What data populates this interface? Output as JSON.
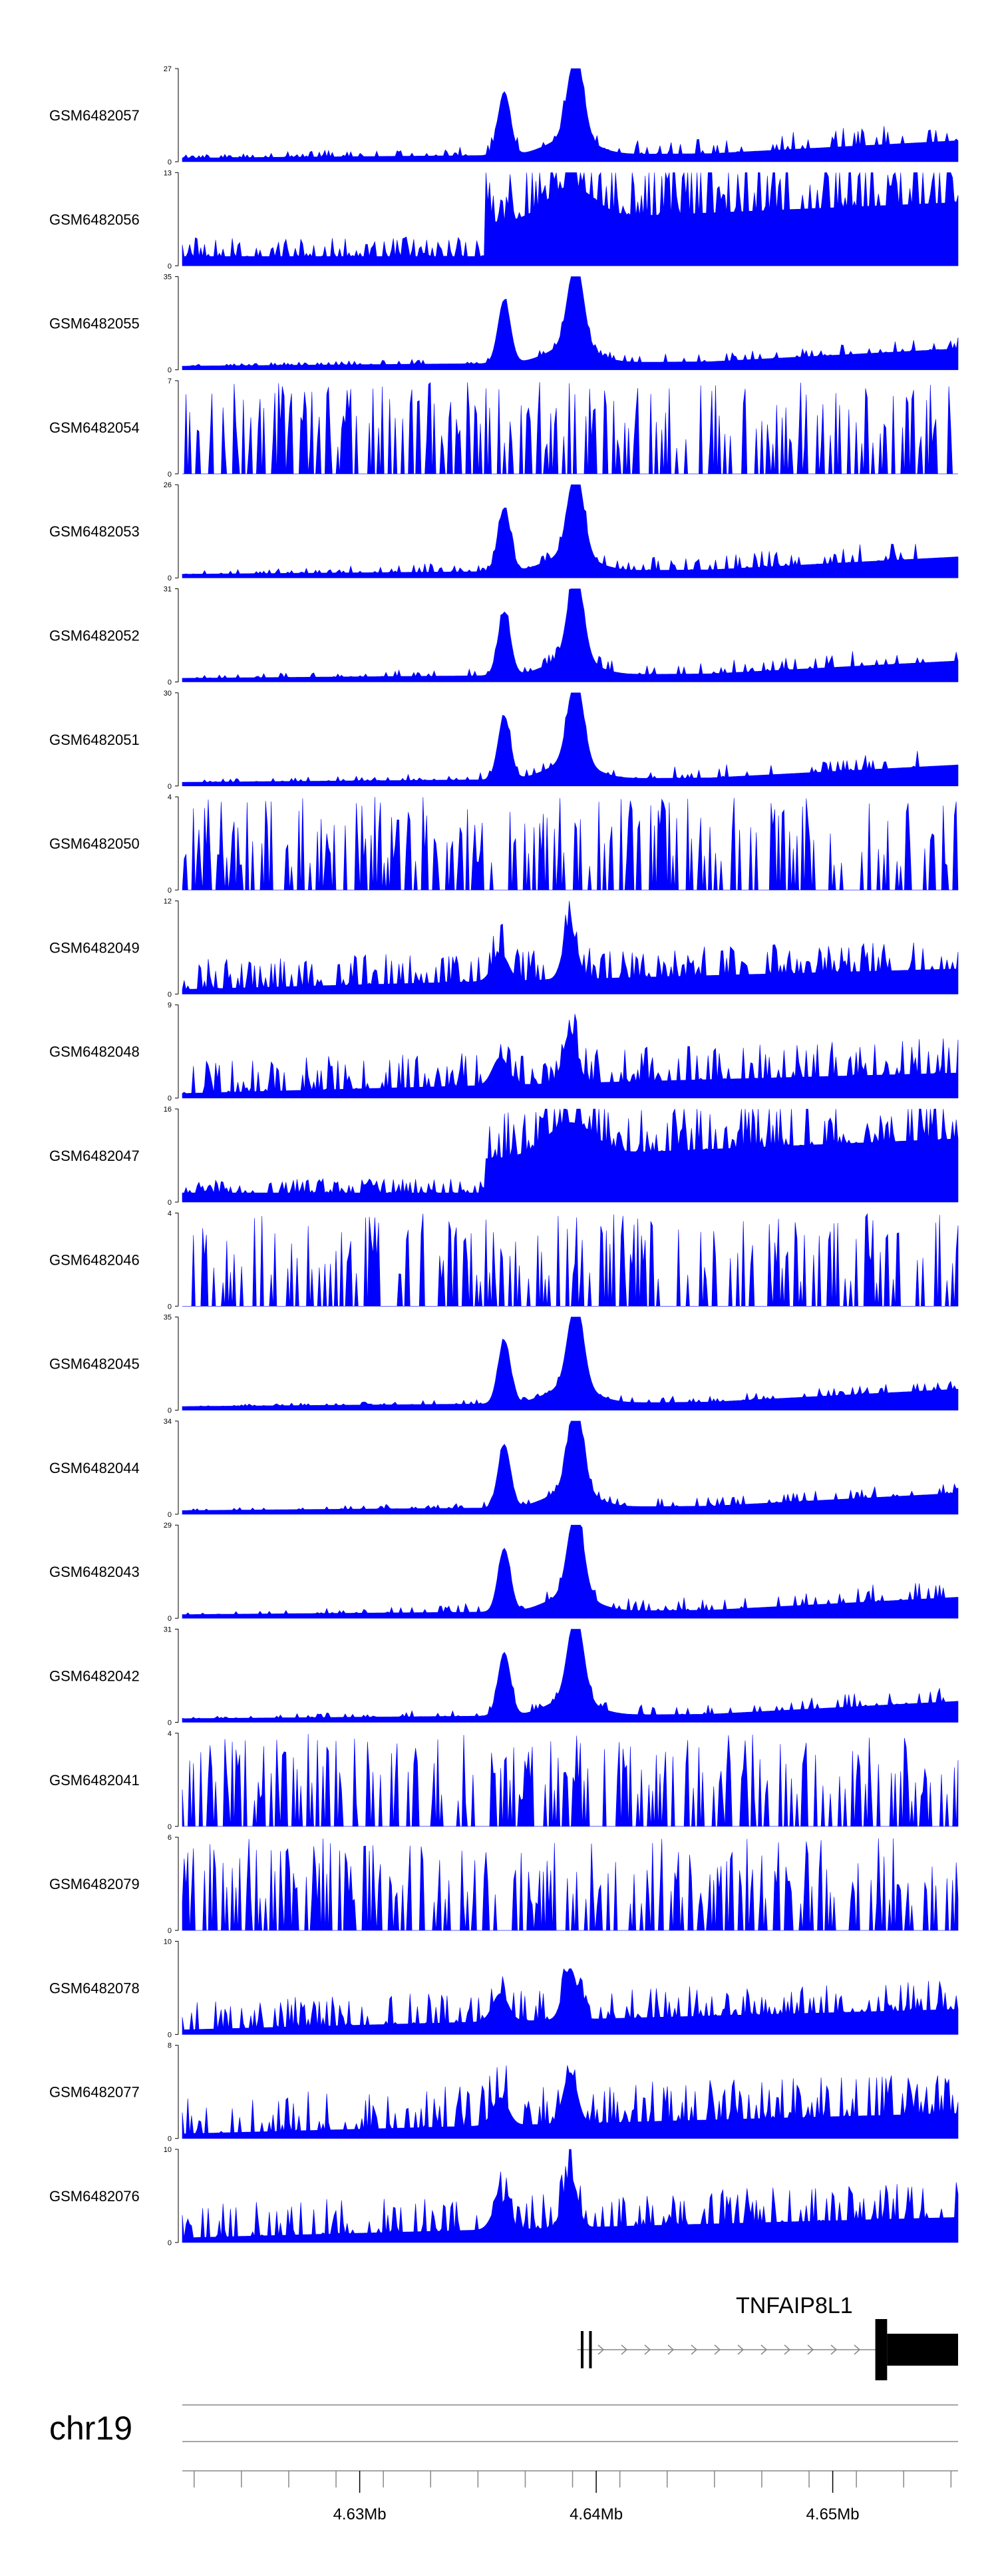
{
  "chart_data": {
    "type": "area",
    "chromosome": "chr19",
    "x_tick_labels": [
      "4.63Mb",
      "4.64Mb",
      "4.65Mb"
    ],
    "x_ticks_mb": [
      4.63,
      4.64,
      4.65
    ],
    "xlim_mb": [
      4.6225,
      4.6553
    ],
    "gene": {
      "name": "TNFAIP8L1",
      "strand": "+",
      "start_mb": 4.6392,
      "end_mb": 4.6553,
      "exons_mb": [
        [
          4.63935,
          4.63945
        ],
        [
          4.6397,
          4.6398
        ],
        [
          4.6518,
          4.6523
        ],
        [
          4.6523,
          4.6553
        ]
      ]
    },
    "tracks": [
      {
        "name": "GSM6482057",
        "ymax": 27,
        "ymin": 0,
        "profile": "peaks",
        "noise": 0.16
      },
      {
        "name": "GSM6482056",
        "ymax": 13,
        "ymin": 0,
        "profile": "broad",
        "noise": 0.35
      },
      {
        "name": "GSM6482055",
        "ymax": 35,
        "ymin": 0,
        "profile": "peaks",
        "noise": 0.09
      },
      {
        "name": "GSM6482054",
        "ymax": 7,
        "ymin": 0,
        "profile": "sparse",
        "noise": 0.55
      },
      {
        "name": "GSM6482053",
        "ymax": 26,
        "ymin": 0,
        "profile": "peaks",
        "noise": 0.15
      },
      {
        "name": "GSM6482052",
        "ymax": 31,
        "ymin": 0,
        "profile": "peaks",
        "noise": 0.13
      },
      {
        "name": "GSM6482051",
        "ymax": 30,
        "ymin": 0,
        "profile": "peaks",
        "noise": 0.13
      },
      {
        "name": "GSM6482050",
        "ymax": 4,
        "ymin": 0,
        "profile": "sparse",
        "noise": 0.7
      },
      {
        "name": "GSM6482049",
        "ymax": 12,
        "ymin": 0,
        "profile": "mixed",
        "noise": 0.3
      },
      {
        "name": "GSM6482048",
        "ymax": 9,
        "ymin": 0,
        "profile": "mixed",
        "noise": 0.35
      },
      {
        "name": "GSM6482047",
        "ymax": 16,
        "ymin": 0,
        "profile": "broad",
        "noise": 0.25
      },
      {
        "name": "GSM6482046",
        "ymax": 4,
        "ymin": 0,
        "profile": "sparse",
        "noise": 0.6
      },
      {
        "name": "GSM6482045",
        "ymax": 35,
        "ymin": 0,
        "profile": "peaks",
        "noise": 0.07
      },
      {
        "name": "GSM6482044",
        "ymax": 34,
        "ymin": 0,
        "profile": "peaks",
        "noise": 0.09
      },
      {
        "name": "GSM6482043",
        "ymax": 29,
        "ymin": 0,
        "profile": "peaks",
        "noise": 0.14
      },
      {
        "name": "GSM6482042",
        "ymax": 31,
        "ymin": 0,
        "profile": "peaks",
        "noise": 0.11
      },
      {
        "name": "GSM6482041",
        "ymax": 4,
        "ymin": 0,
        "profile": "sparse",
        "noise": 0.65
      },
      {
        "name": "GSM6482079",
        "ymax": 6,
        "ymin": 0,
        "profile": "sparse",
        "noise": 0.45
      },
      {
        "name": "GSM6482078",
        "ymax": 10,
        "ymin": 0,
        "profile": "mixed",
        "noise": 0.3
      },
      {
        "name": "GSM6482077",
        "ymax": 8,
        "ymin": 0,
        "profile": "mixed",
        "noise": 0.4
      },
      {
        "name": "GSM6482076",
        "ymax": 10,
        "ymin": 0,
        "profile": "mixed",
        "noise": 0.35
      }
    ],
    "colors": {
      "signal": "#0000ff",
      "axis": "#000000",
      "gene": "#000000",
      "ideogram": "#888888"
    },
    "grid": false,
    "legend": "none"
  }
}
